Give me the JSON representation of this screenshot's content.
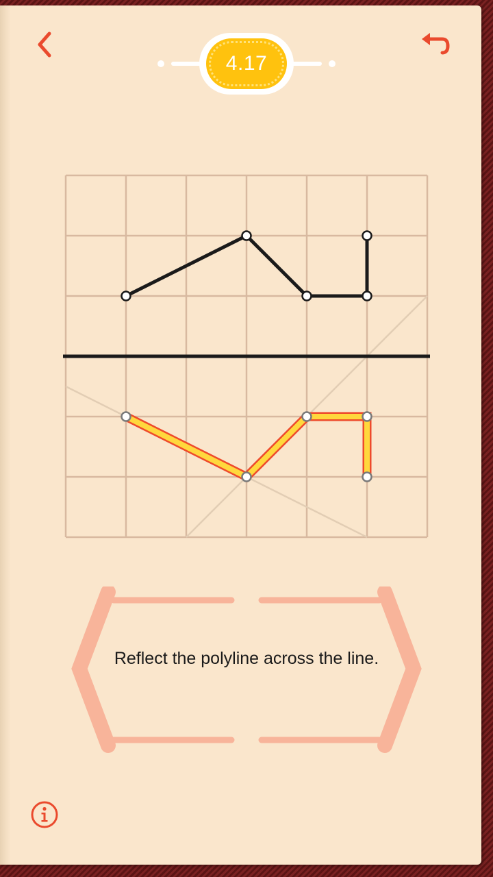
{
  "header": {
    "level": "4.17",
    "back_icon": "chevron-left-icon",
    "undo_icon": "undo-arrow-icon",
    "accent_color": "#ea4a2d",
    "badge_color": "#ffc20e"
  },
  "puzzle": {
    "grid": {
      "cols": 6,
      "rows": 6
    },
    "mirror_line": {
      "y": 3
    },
    "original_polyline": [
      [
        1,
        2
      ],
      [
        3,
        1
      ],
      [
        4,
        2
      ],
      [
        5,
        2
      ],
      [
        5,
        1
      ]
    ],
    "reflected_polyline": [
      [
        1,
        4
      ],
      [
        3,
        5
      ],
      [
        4,
        4
      ],
      [
        5,
        4
      ],
      [
        5,
        5
      ]
    ],
    "guide_lines": [
      [
        [
          0,
          3.5
        ],
        [
          5,
          6
        ]
      ],
      [
        [
          2,
          6
        ],
        [
          6,
          2
        ]
      ]
    ],
    "colors": {
      "grid": "#d8b9a0",
      "line": "#1a1a1a",
      "fill": "#ffd83d",
      "stroke": "#ee4a2b"
    }
  },
  "instruction": {
    "text": "Reflect the polyline across the line."
  },
  "footer": {
    "info_icon": "info-icon"
  }
}
